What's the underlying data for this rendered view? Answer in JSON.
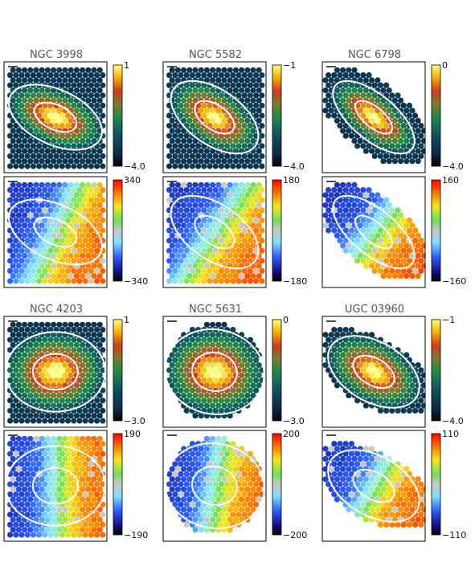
{
  "figure": {
    "galaxies": [
      "NGC 3998",
      "NGC 5582",
      "NGC 6798",
      "NGC 4203",
      "NGC 5631",
      "UGC 03960"
    ]
  },
  "chart_data": [
    {
      "type": "heatmap",
      "galaxy": "NGC 3998",
      "map": "flux",
      "colorbar": {
        "max": "1",
        "min": "−4.0"
      }
    },
    {
      "type": "heatmap",
      "galaxy": "NGC 3998",
      "map": "velocity",
      "colorbar": {
        "max": "340",
        "min": "−340"
      }
    },
    {
      "type": "heatmap",
      "galaxy": "NGC 5582",
      "map": "flux",
      "colorbar": {
        "max": "−1",
        "min": "−4.0"
      }
    },
    {
      "type": "heatmap",
      "galaxy": "NGC 5582",
      "map": "velocity",
      "colorbar": {
        "max": "180",
        "min": "−180"
      }
    },
    {
      "type": "heatmap",
      "galaxy": "NGC 6798",
      "map": "flux",
      "colorbar": {
        "max": "0",
        "min": "−4.0"
      }
    },
    {
      "type": "heatmap",
      "galaxy": "NGC 6798",
      "map": "velocity",
      "colorbar": {
        "max": "160",
        "min": "−160"
      }
    },
    {
      "type": "heatmap",
      "galaxy": "NGC 4203",
      "map": "flux",
      "colorbar": {
        "max": "1",
        "min": "−3.0"
      }
    },
    {
      "type": "heatmap",
      "galaxy": "NGC 4203",
      "map": "velocity",
      "colorbar": {
        "max": "190",
        "min": "−190"
      }
    },
    {
      "type": "heatmap",
      "galaxy": "NGC 5631",
      "map": "flux",
      "colorbar": {
        "max": "0",
        "min": "−3.0"
      }
    },
    {
      "type": "heatmap",
      "galaxy": "NGC 5631",
      "map": "velocity",
      "colorbar": {
        "max": "200",
        "min": "−200"
      }
    },
    {
      "type": "heatmap",
      "galaxy": "UGC 03960",
      "map": "flux",
      "colorbar": {
        "max": "−1",
        "min": "−4.0"
      }
    },
    {
      "type": "heatmap",
      "galaxy": "UGC 03960",
      "map": "velocity",
      "colorbar": {
        "max": "110",
        "min": "−110"
      }
    }
  ]
}
